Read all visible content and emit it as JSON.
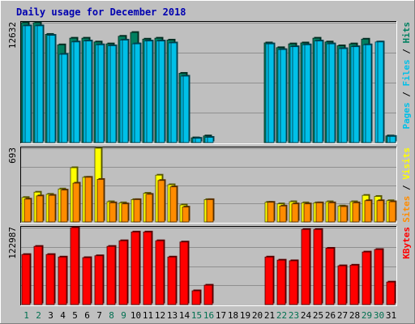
{
  "title": "Daily usage for December 2018",
  "colors": {
    "background": "#c0c0c0",
    "panel": "#bfbfbf",
    "frame_light": "#ffffff",
    "frame_dark": "#808080",
    "grid": "#8f8f8f",
    "title": "#0000b0",
    "hits": "#008060",
    "files": "#00c0e8",
    "pages": "#00c0e8",
    "visits": "#ffff00",
    "sites": "#ff8c00",
    "kbytes": "#ff0000",
    "weekday_label": "#000000",
    "weekend_label": "#007050",
    "legend_sep": "#000000"
  },
  "legend": {
    "top": [
      {
        "text": "Pages",
        "color_key": "pages"
      },
      {
        "text": " / ",
        "color_key": "legend_sep"
      },
      {
        "text": "Files",
        "color_key": "files"
      },
      {
        "text": " / ",
        "color_key": "legend_sep"
      },
      {
        "text": "Hits",
        "color_key": "hits"
      }
    ],
    "middle": [
      {
        "text": "Sites",
        "color_key": "sites"
      },
      {
        "text": " / ",
        "color_key": "legend_sep"
      },
      {
        "text": "Visits",
        "color_key": "visits"
      }
    ],
    "bottom": [
      {
        "text": "KBytes",
        "color_key": "kbytes"
      }
    ]
  },
  "chart_data": [
    {
      "type": "bar",
      "panel": "top",
      "ymax_label": "12632",
      "ylim": [
        0,
        12632
      ],
      "categories": [
        "1",
        "2",
        "3",
        "4",
        "5",
        "6",
        "7",
        "8",
        "9",
        "10",
        "11",
        "12",
        "13",
        "14",
        "15",
        "16",
        "17",
        "18",
        "19",
        "20",
        "21",
        "22",
        "23",
        "24",
        "25",
        "26",
        "27",
        "28",
        "29",
        "30",
        "31"
      ],
      "weekend_days": [
        "1",
        "2",
        "8",
        "9",
        "15",
        "16",
        "22",
        "23",
        "29",
        "30"
      ],
      "grid": true,
      "series": [
        {
          "name": "Hits",
          "color_key": "hits",
          "values": [
            12632,
            12632,
            11400,
            10300,
            11000,
            11000,
            10600,
            10400,
            11200,
            11600,
            10900,
            11000,
            10800,
            7300,
            500,
            700,
            0,
            0,
            0,
            0,
            10500,
            10000,
            10400,
            10500,
            11000,
            10600,
            10200,
            10400,
            10900,
            0,
            700
          ]
        },
        {
          "name": "Files",
          "color_key": "files",
          "values": [
            12300,
            12300,
            11300,
            9300,
            10600,
            10700,
            10300,
            10200,
            10800,
            10400,
            10700,
            10700,
            10500,
            7000,
            450,
            550,
            0,
            0,
            0,
            0,
            10400,
            9800,
            10100,
            10300,
            10700,
            10400,
            9900,
            10100,
            10300,
            10600,
            650
          ]
        },
        {
          "name": "Pages",
          "color_key": "pages",
          "values": [
            12300,
            12300,
            11300,
            9300,
            10600,
            10700,
            10300,
            10200,
            10800,
            10400,
            10700,
            10700,
            10500,
            7000,
            450,
            550,
            0,
            0,
            0,
            0,
            10400,
            9800,
            10100,
            10300,
            10700,
            10400,
            9900,
            10100,
            10300,
            10600,
            650
          ]
        }
      ]
    },
    {
      "type": "bar",
      "panel": "middle",
      "ymax_label": "693",
      "ylim": [
        0,
        693
      ],
      "categories": [
        "1",
        "2",
        "3",
        "4",
        "5",
        "6",
        "7",
        "8",
        "9",
        "10",
        "11",
        "12",
        "13",
        "14",
        "15",
        "16",
        "17",
        "18",
        "19",
        "20",
        "21",
        "22",
        "23",
        "24",
        "25",
        "26",
        "27",
        "28",
        "29",
        "30",
        "31"
      ],
      "grid": true,
      "series": [
        {
          "name": "Visits",
          "color_key": "visits",
          "values": [
            230,
            280,
            260,
            310,
            510,
            420,
            693,
            190,
            180,
            210,
            270,
            440,
            350,
            160,
            0,
            210,
            0,
            0,
            0,
            0,
            185,
            170,
            190,
            180,
            180,
            190,
            150,
            190,
            250,
            240,
            200
          ]
        },
        {
          "name": "Sites",
          "color_key": "sites",
          "values": [
            215,
            245,
            250,
            300,
            365,
            420,
            400,
            180,
            170,
            210,
            260,
            390,
            330,
            140,
            0,
            210,
            0,
            0,
            0,
            0,
            185,
            150,
            170,
            170,
            180,
            180,
            145,
            180,
            200,
            200,
            190
          ]
        }
      ]
    },
    {
      "type": "bar",
      "panel": "bottom",
      "ymax_label": "122987",
      "ylim": [
        0,
        122987
      ],
      "categories": [
        "1",
        "2",
        "3",
        "4",
        "5",
        "6",
        "7",
        "8",
        "9",
        "10",
        "11",
        "12",
        "13",
        "14",
        "15",
        "16",
        "17",
        "18",
        "19",
        "20",
        "21",
        "22",
        "23",
        "24",
        "25",
        "26",
        "27",
        "28",
        "29",
        "30",
        "31"
      ],
      "grid": true,
      "series": [
        {
          "name": "KBytes",
          "color_key": "kbytes",
          "values": [
            80000,
            93000,
            80000,
            76000,
            122987,
            75000,
            78000,
            93000,
            102000,
            116000,
            116000,
            102000,
            76000,
            100000,
            22000,
            31000,
            0,
            0,
            0,
            0,
            76000,
            71000,
            70000,
            120000,
            120000,
            90000,
            62000,
            63000,
            84000,
            88000,
            36000
          ]
        }
      ]
    }
  ]
}
